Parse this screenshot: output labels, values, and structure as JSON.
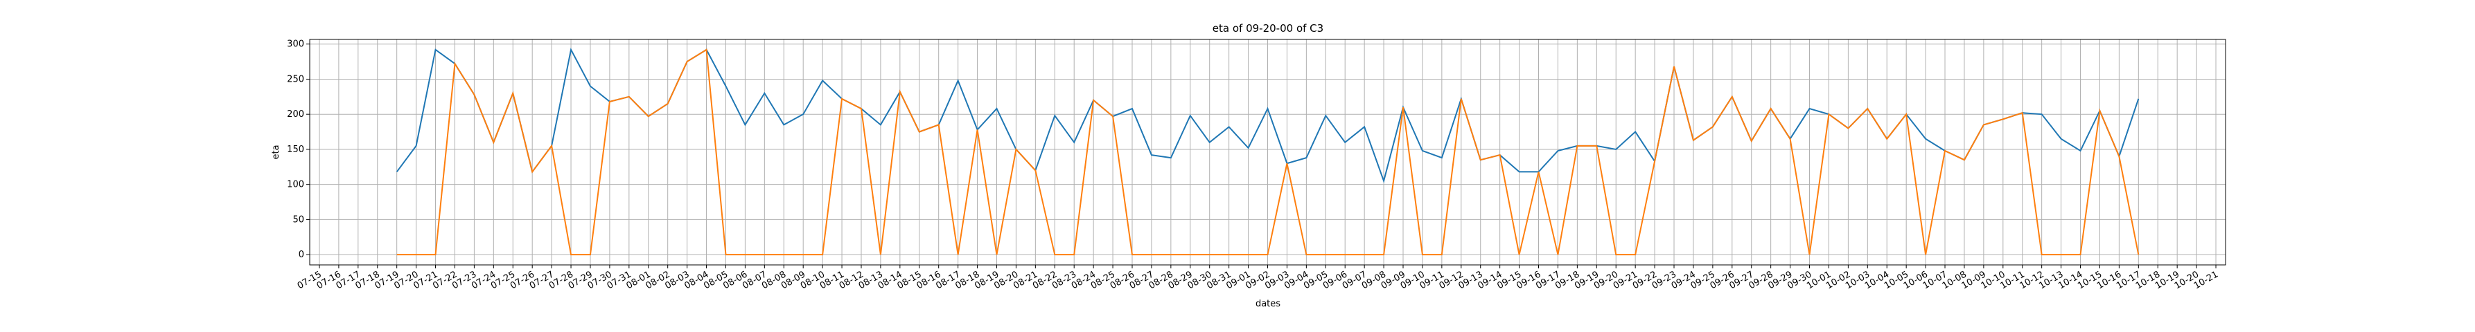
{
  "chart_data": {
    "type": "line",
    "title": "eta of 09-20-00 of C3",
    "x_label": "dates",
    "y_label": "eta",
    "categories": [
      "07-15",
      "07-16",
      "07-17",
      "07-18",
      "07-19",
      "07-20",
      "07-21",
      "07-22",
      "07-23",
      "07-24",
      "07-25",
      "07-26",
      "07-27",
      "07-28",
      "07-29",
      "07-30",
      "07-31",
      "08-01",
      "08-02",
      "08-03",
      "08-04",
      "08-05",
      "08-06",
      "08-07",
      "08-08",
      "08-09",
      "08-10",
      "08-11",
      "08-12",
      "08-13",
      "08-14",
      "08-15",
      "08-16",
      "08-17",
      "08-18",
      "08-19",
      "08-20",
      "08-21",
      "08-22",
      "08-23",
      "08-24",
      "08-25",
      "08-26",
      "08-27",
      "08-28",
      "08-29",
      "08-30",
      "08-31",
      "09-01",
      "09-02",
      "09-03",
      "09-04",
      "09-05",
      "09-06",
      "09-07",
      "09-08",
      "09-09",
      "09-10",
      "09-11",
      "09-12",
      "09-13",
      "09-14",
      "09-15",
      "09-16",
      "09-17",
      "09-18",
      "09-19",
      "09-20",
      "09-21",
      "09-22",
      "09-23",
      "09-24",
      "09-25",
      "09-26",
      "09-27",
      "09-28",
      "09-29",
      "09-30",
      "10-01",
      "10-02",
      "10-03",
      "10-04",
      "10-05",
      "10-06",
      "10-07",
      "10-08",
      "10-09",
      "10-10",
      "10-11",
      "10-12",
      "10-13",
      "10-14",
      "10-15",
      "10-16",
      "10-17",
      "10-18",
      "10-19",
      "10-20",
      "10-21"
    ],
    "series": [
      {
        "color": "#1f77b4",
        "values": [
          null,
          null,
          null,
          null,
          118,
          155,
          292,
          272,
          228,
          160,
          230,
          118,
          155,
          292,
          240,
          218,
          225,
          197,
          215,
          275,
          292,
          240,
          185,
          230,
          185,
          200,
          248,
          222,
          208,
          185,
          232,
          175,
          185,
          248,
          178,
          208,
          150,
          120,
          198,
          160,
          220,
          197,
          208,
          142,
          138,
          198,
          160,
          182,
          152,
          208,
          130,
          138,
          198,
          160,
          182,
          105,
          210,
          148,
          138,
          222,
          135,
          142,
          118,
          118,
          148,
          155,
          155,
          150,
          175,
          133,
          268,
          163,
          182,
          225,
          162,
          208,
          165,
          208,
          200,
          180,
          208,
          165,
          200,
          165,
          148,
          135,
          185,
          193,
          202,
          200,
          165,
          148,
          205,
          140,
          222,
          null,
          null,
          null,
          null
        ]
      },
      {
        "color": "#ff7f0e",
        "values": [
          null,
          null,
          null,
          null,
          0,
          0,
          0,
          272,
          228,
          160,
          230,
          118,
          155,
          0,
          0,
          218,
          225,
          197,
          215,
          275,
          292,
          0,
          0,
          0,
          0,
          0,
          0,
          222,
          208,
          0,
          232,
          175,
          185,
          0,
          178,
          0,
          150,
          120,
          0,
          0,
          220,
          197,
          0,
          0,
          0,
          0,
          0,
          0,
          0,
          0,
          130,
          0,
          0,
          0,
          0,
          0,
          210,
          0,
          0,
          222,
          135,
          142,
          0,
          118,
          0,
          155,
          155,
          0,
          0,
          133,
          268,
          163,
          182,
          225,
          162,
          208,
          165,
          0,
          200,
          180,
          208,
          165,
          200,
          0,
          148,
          135,
          185,
          193,
          202,
          0,
          0,
          0,
          205,
          140,
          0,
          null,
          null,
          null,
          null
        ]
      }
    ],
    "ylim": [
      -14.6,
      306.6
    ],
    "yticks": [
      0,
      50,
      100,
      150,
      200,
      250,
      300
    ],
    "grid": true
  }
}
